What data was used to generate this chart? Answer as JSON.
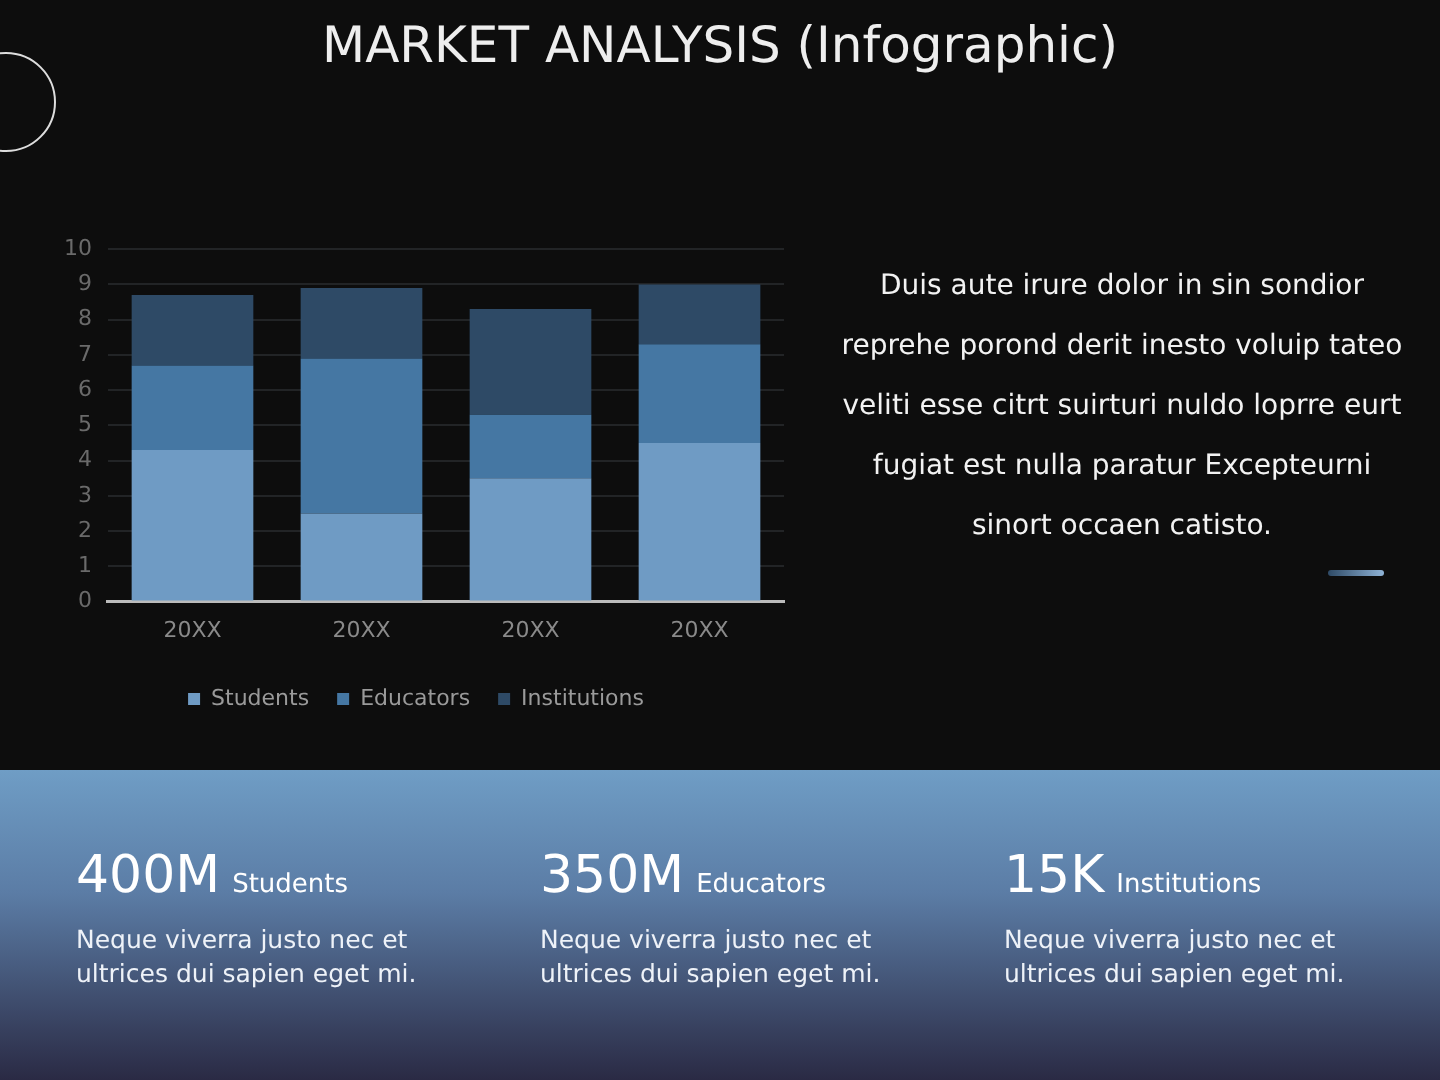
{
  "chart_data": {
    "type": "bar",
    "title": "MARKET ANALYSIS (Infographic)",
    "categories": [
      "20XX",
      "20XX",
      "20XX",
      "20XX"
    ],
    "stacked": true,
    "series": [
      {
        "name": "Students",
        "color": "#6f9bc4",
        "values": [
          4.3,
          2.5,
          3.5,
          4.5
        ]
      },
      {
        "name": "Educators",
        "color": "#4577a3",
        "values": [
          2.4,
          4.4,
          1.8,
          2.8
        ]
      },
      {
        "name": "Institutions",
        "color": "#2e4a66",
        "values": [
          2.0,
          2.0,
          3.0,
          1.7
        ]
      }
    ],
    "ylim": [
      0,
      10
    ],
    "yticks": [
      0,
      1,
      2,
      3,
      4,
      5,
      6,
      7,
      8,
      9,
      10
    ],
    "grid": "y",
    "legend": "bottom",
    "annotations": [
      "Duis aute irure dolor in sin sondior reprehe porond derit inesto voluip tateo veliti esse citrt suirturi nuldo loprre eurt fugiat est nulla paratur Excepteurni sinort occaen catisto.",
      "400M Students",
      "Neque viverra justo nec et ultrices dui sapien eget mi.",
      "350M Educators",
      "Neque viverra justo nec et ultrices dui sapien eget mi.",
      "15K Institutions",
      "Neque viverra justo nec et ultrices dui sapien eget mi."
    ]
  }
}
